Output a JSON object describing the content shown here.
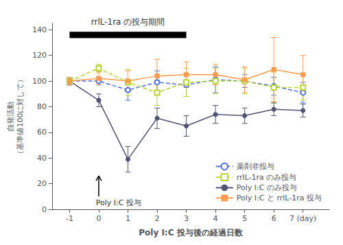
{
  "chart_data": {
    "type": "line",
    "xlabel": "Poly I:C 投与後の経過日数",
    "ylabel": [
      "自発活動",
      "（基準値100に対して）"
    ],
    "xlim": [
      -1.6,
      7.9
    ],
    "ylim": [
      0,
      145
    ],
    "xticks": [
      -1,
      0,
      1,
      2,
      3,
      4,
      5,
      6,
      {
        "value": 7,
        "label": "7 (day)"
      }
    ],
    "yticks": [
      0,
      20,
      40,
      60,
      80,
      100,
      120,
      140
    ],
    "grid": false,
    "legend": "lower right",
    "x": [
      -1,
      0,
      1,
      2,
      3,
      4,
      5,
      6,
      7
    ],
    "series": [
      {
        "name": "薬剤非投与",
        "marker": "circle_open",
        "line_style": "dashed",
        "values": [
          100,
          100,
          93,
          99,
          97,
          101,
          100,
          96,
          91
        ],
        "errors": [
          3,
          3,
          8,
          9,
          9,
          10,
          5,
          7,
          8
        ]
      },
      {
        "name": "rrlL-1ra のみ投与",
        "marker": "square_open",
        "line_style": "dashed",
        "values": [
          100,
          110,
          99,
          91,
          99,
          100,
          100,
          95,
          95
        ],
        "errors": [
          3,
          3,
          10,
          10,
          11,
          10,
          10,
          12,
          10
        ]
      },
      {
        "name": "Poly I:C のみ投与",
        "marker": "circle",
        "line_style": "solid",
        "values": [
          100,
          85,
          39,
          71,
          65,
          74,
          73,
          78,
          77
        ],
        "errors": [
          3,
          5,
          10,
          8,
          8,
          7,
          6,
          5,
          5
        ]
      },
      {
        "name": "Poly I:C と rrlL-1ra 投与",
        "marker": "square",
        "line_style": "solid",
        "values": [
          100,
          102,
          100,
          104,
          105,
          105,
          101,
          109,
          105
        ],
        "errors": [
          3,
          5,
          8,
          13,
          10,
          8,
          10,
          25,
          15
        ]
      }
    ],
    "period_bar": {
      "x": [
        -1.0,
        3.0
      ],
      "y": 136,
      "height": 5,
      "label": "rrlL-1ra の投与期間",
      "label_x": 1.0,
      "label_y": 143
    },
    "arrow": {
      "x": 0,
      "y": [
        10,
        26
      ],
      "label": "Poly I:C 投与",
      "label_x": -0.1,
      "label_y": 8
    }
  }
}
